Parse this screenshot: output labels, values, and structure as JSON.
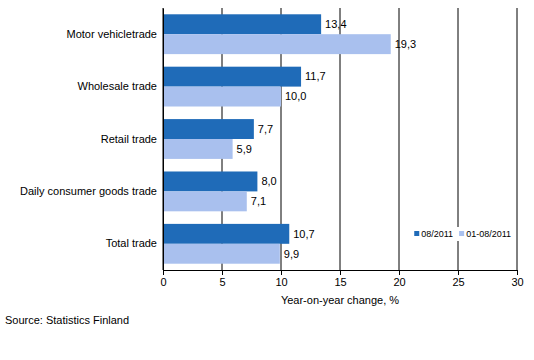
{
  "chart_data": {
    "type": "bar",
    "orientation": "horizontal",
    "categories": [
      "Motor vehicletrade",
      "Wholesale trade",
      "Retail trade",
      "Daily consumer goods trade",
      "Total trade"
    ],
    "series": [
      {
        "name": "08/2011",
        "color": "#1f6bb8",
        "values": [
          13.4,
          11.7,
          7.7,
          8.0,
          10.7
        ],
        "value_labels": [
          "13,4",
          "11,7",
          "7,7",
          "8,0",
          "10,7"
        ]
      },
      {
        "name": "01-08/2011",
        "color": "#a9c0ee",
        "values": [
          19.3,
          10.0,
          5.9,
          7.1,
          9.9
        ],
        "value_labels": [
          "19,3",
          "10,0",
          "5,9",
          "7,1",
          "9,9"
        ]
      }
    ],
    "xlim": [
      0,
      30
    ],
    "xticks": [
      0,
      5,
      10,
      15,
      20,
      25,
      30
    ],
    "x_label": "Year-on-year change, %",
    "annotations": [
      "Source: Statistics Finland"
    ],
    "grid": true,
    "legend": "lower right",
    "data_labels": true
  }
}
